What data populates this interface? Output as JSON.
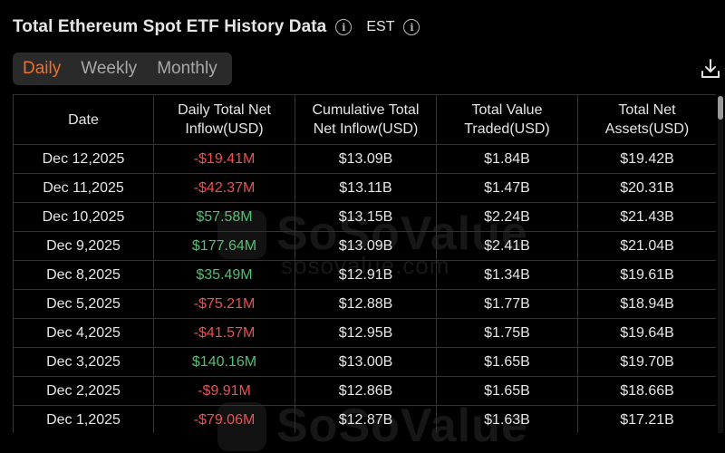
{
  "header": {
    "title": "Total Ethereum Spot ETF History Data",
    "timezone": "EST"
  },
  "tabs": [
    {
      "label": "Daily",
      "active": true
    },
    {
      "label": "Weekly",
      "active": false
    },
    {
      "label": "Monthly",
      "active": false
    }
  ],
  "table": {
    "columns": [
      "Date",
      "Daily Total Net Inflow(USD)",
      "Cumulative Total Net Inflow(USD)",
      "Total Value Traded(USD)",
      "Total Net Assets(USD)"
    ],
    "rows": [
      {
        "date": "Dec 12,2025",
        "daily": "-$19.41M",
        "cumulative": "$13.09B",
        "traded": "$1.84B",
        "assets": "$19.42B"
      },
      {
        "date": "Dec 11,2025",
        "daily": "-$42.37M",
        "cumulative": "$13.11B",
        "traded": "$1.47B",
        "assets": "$20.31B"
      },
      {
        "date": "Dec 10,2025",
        "daily": "$57.58M",
        "cumulative": "$13.15B",
        "traded": "$2.24B",
        "assets": "$21.43B"
      },
      {
        "date": "Dec 9,2025",
        "daily": "$177.64M",
        "cumulative": "$13.09B",
        "traded": "$2.41B",
        "assets": "$21.04B"
      },
      {
        "date": "Dec 8,2025",
        "daily": "$35.49M",
        "cumulative": "$12.91B",
        "traded": "$1.34B",
        "assets": "$19.61B"
      },
      {
        "date": "Dec 5,2025",
        "daily": "-$75.21M",
        "cumulative": "$12.88B",
        "traded": "$1.77B",
        "assets": "$18.94B"
      },
      {
        "date": "Dec 4,2025",
        "daily": "-$41.57M",
        "cumulative": "$12.95B",
        "traded": "$1.75B",
        "assets": "$19.64B"
      },
      {
        "date": "Dec 3,2025",
        "daily": "$140.16M",
        "cumulative": "$13.00B",
        "traded": "$1.65B",
        "assets": "$19.70B"
      },
      {
        "date": "Dec 2,2025",
        "daily": "-$9.91M",
        "cumulative": "$12.86B",
        "traded": "$1.65B",
        "assets": "$18.66B"
      },
      {
        "date": "Dec 1,2025",
        "daily": "-$79.06M",
        "cumulative": "$12.87B",
        "traded": "$1.63B",
        "assets": "$17.21B"
      }
    ]
  },
  "watermark": {
    "brand": "SoSoValue",
    "url": "sosovalue.com"
  },
  "icons": {
    "info": "info-icon",
    "download": "download-icon"
  },
  "colors": {
    "accent": "#f0702c",
    "positive": "#4fc174",
    "negative": "#ef4f4f",
    "background": "#000000"
  }
}
